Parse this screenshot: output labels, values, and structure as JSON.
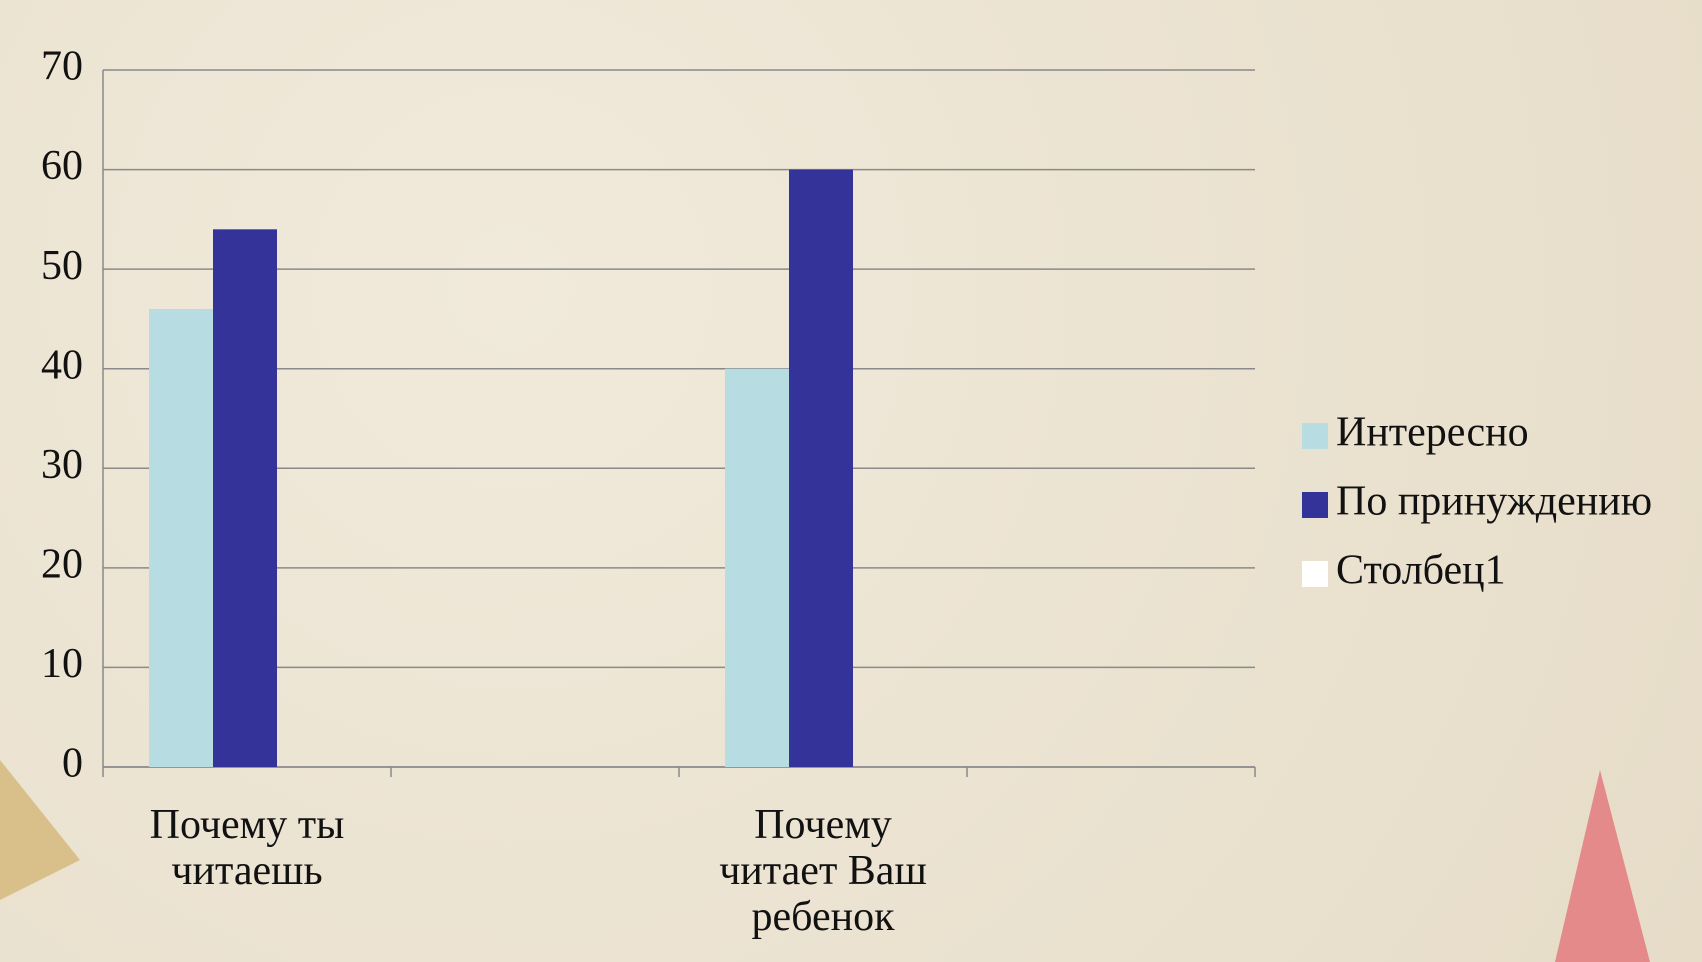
{
  "chart_data": {
    "type": "bar",
    "categories": [
      "Почему ты читаешь",
      null,
      "Почему читает Ваш ребенок",
      null
    ],
    "series": [
      {
        "name": "Интересно",
        "color": "#b7dde2",
        "values": [
          46,
          null,
          40,
          null
        ]
      },
      {
        "name": "По принуждению",
        "color": "#333399",
        "values": [
          54,
          null,
          60,
          null
        ]
      },
      {
        "name": "Столбец1",
        "color": "#ffffff",
        "values": [
          null,
          null,
          null,
          null
        ]
      }
    ],
    "ylim": [
      0,
      70
    ],
    "yticks": [
      0,
      10,
      20,
      30,
      40,
      50,
      60,
      70
    ],
    "grid": true,
    "legend": "right"
  }
}
